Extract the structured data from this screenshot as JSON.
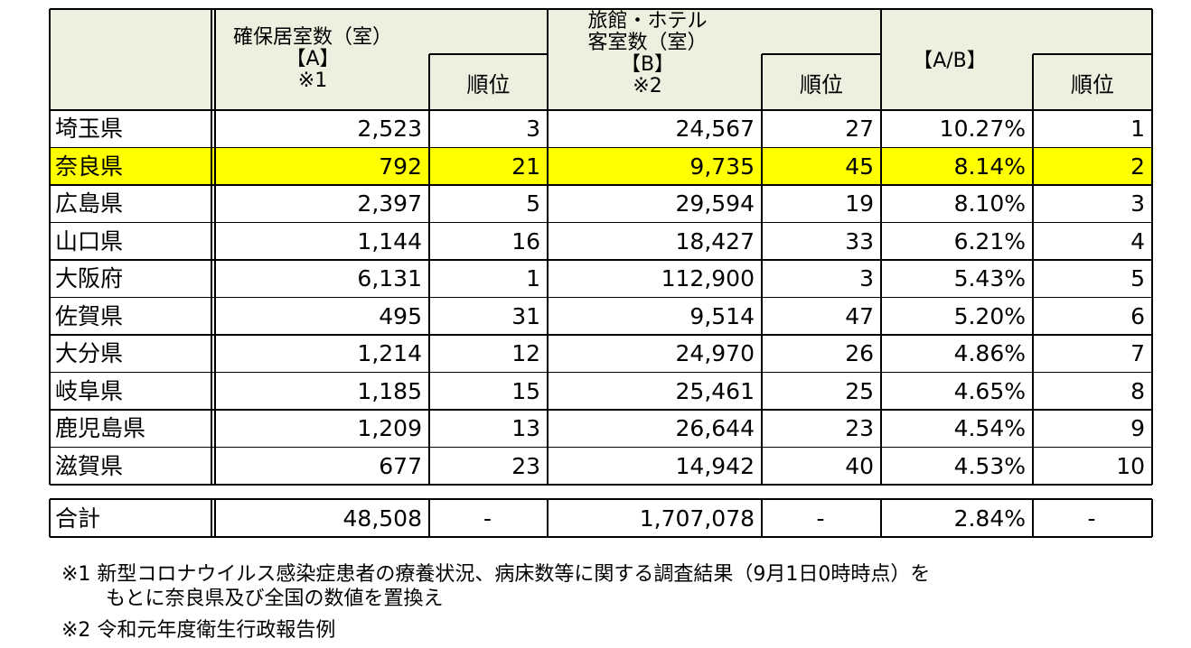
{
  "header": {
    "col_a": [
      "確保居室数（室）",
      "【A】",
      "※1"
    ],
    "col_a_rank": "順位",
    "col_b": [
      "旅館・ホテル",
      "客室数（室）",
      "【B】",
      "※2"
    ],
    "col_b_rank": "順位",
    "col_ab": "【A/B】",
    "col_ab_rank": "順位"
  },
  "rows": [
    {
      "pref": "埼玉県",
      "a": "2,523",
      "a_rank": "3",
      "b": "24,567",
      "b_rank": "27",
      "ab": "10.27%",
      "ab_rank": "1",
      "highlight": false
    },
    {
      "pref": "奈良県",
      "a": "792",
      "a_rank": "21",
      "b": "9,735",
      "b_rank": "45",
      "ab": "8.14%",
      "ab_rank": "2",
      "highlight": true
    },
    {
      "pref": "広島県",
      "a": "2,397",
      "a_rank": "5",
      "b": "29,594",
      "b_rank": "19",
      "ab": "8.10%",
      "ab_rank": "3",
      "highlight": false
    },
    {
      "pref": "山口県",
      "a": "1,144",
      "a_rank": "16",
      "b": "18,427",
      "b_rank": "33",
      "ab": "6.21%",
      "ab_rank": "4",
      "highlight": false
    },
    {
      "pref": "大阪府",
      "a": "6,131",
      "a_rank": "1",
      "b": "112,900",
      "b_rank": "3",
      "ab": "5.43%",
      "ab_rank": "5",
      "highlight": false
    },
    {
      "pref": "佐賀県",
      "a": "495",
      "a_rank": "31",
      "b": "9,514",
      "b_rank": "47",
      "ab": "5.20%",
      "ab_rank": "6",
      "highlight": false
    },
    {
      "pref": "大分県",
      "a": "1,214",
      "a_rank": "12",
      "b": "24,970",
      "b_rank": "26",
      "ab": "4.86%",
      "ab_rank": "7",
      "highlight": false
    },
    {
      "pref": "岐阜県",
      "a": "1,185",
      "a_rank": "15",
      "b": "25,461",
      "b_rank": "25",
      "ab": "4.65%",
      "ab_rank": "8",
      "highlight": false
    },
    {
      "pref": "鹿児島県",
      "a": "1,209",
      "a_rank": "13",
      "b": "26,644",
      "b_rank": "23",
      "ab": "4.54%",
      "ab_rank": "9",
      "highlight": false
    },
    {
      "pref": "滋賀県",
      "a": "677",
      "a_rank": "23",
      "b": "14,942",
      "b_rank": "40",
      "ab": "4.53%",
      "ab_rank": "10",
      "highlight": false
    }
  ],
  "total": {
    "label": "合計",
    "a": "48,508",
    "a_rank": "-",
    "b": "1,707,078",
    "b_rank": "-",
    "ab": "2.84%",
    "ab_rank": "-"
  },
  "notes": [
    "※1 新型コロナウイルス感染症患者の療養状況、病床数等に関する調査結果（9月1日0時時点）を",
    "もとに奈良県及び全国の数値を置換え",
    "※2 令和元年度衛生行政報告例"
  ],
  "colors": {
    "header_bg": "#ebf1de",
    "highlight_bg": "#ffff00",
    "border": "#000000"
  }
}
